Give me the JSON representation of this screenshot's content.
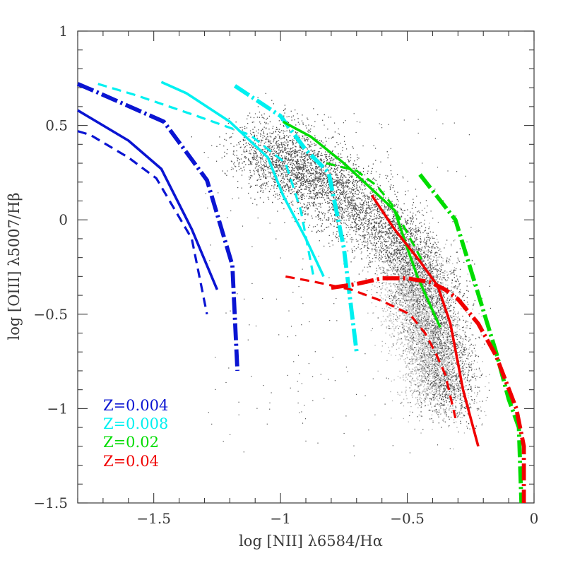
{
  "chart_data": {
    "type": "scatter",
    "title": "",
    "xlabel": "log [NII] λ6584/Hα",
    "ylabel": "log [OIII] λ5007/Hβ",
    "xlim": [
      -1.8,
      0
    ],
    "ylim": [
      -1.5,
      1
    ],
    "x_ticks": [
      -1.5,
      -1,
      -0.5,
      0
    ],
    "y_ticks": [
      -1.5,
      -1,
      -0.5,
      0,
      0.5,
      1
    ],
    "x_tick_labels": [
      "−1.5",
      "−1",
      "−0.5",
      "0"
    ],
    "y_tick_labels": [
      "−1.5",
      "−1",
      "−0.5",
      "0",
      "0.5",
      "1"
    ],
    "grid": false,
    "legend": {
      "placement": "bottom-left",
      "entries": [
        {
          "label": "Z=0.004",
          "color": "#0a14d2"
        },
        {
          "label": "Z=0.008",
          "color": "#00f0f0"
        },
        {
          "label": "Z=0.02",
          "color": "#00dc00"
        },
        {
          "label": "Z=0.04",
          "color": "#f00000"
        }
      ]
    },
    "background_points": {
      "colors": [
        "#4a4a4a",
        "#a9a9a9",
        "#c8c8c8"
      ]
    },
    "series": [
      {
        "metallicity": "Z=0.004",
        "style": "solid",
        "color": "#0a14d2",
        "x": [
          -1.8,
          -1.6,
          -1.47,
          -1.35,
          -1.25
        ],
        "y": [
          0.58,
          0.42,
          0.27,
          -0.05,
          -0.37
        ]
      },
      {
        "metallicity": "Z=0.004",
        "style": "dashed",
        "color": "#0a14d2",
        "x": [
          -1.8,
          -1.75,
          -1.6,
          -1.49,
          -1.35,
          -1.29
        ],
        "y": [
          0.47,
          0.45,
          0.33,
          0.22,
          -0.1,
          -0.5
        ]
      },
      {
        "metallicity": "Z=0.004",
        "style": "dash-dot",
        "color": "#0a14d2",
        "x": [
          -1.8,
          -1.73,
          -1.46,
          -1.29,
          -1.19,
          -1.17
        ],
        "y": [
          0.72,
          0.68,
          0.52,
          0.21,
          -0.24,
          -0.8
        ]
      },
      {
        "metallicity": "Z=0.008",
        "style": "solid",
        "color": "#00f0f0",
        "x": [
          -1.47,
          -1.37,
          -1.2,
          -1.05,
          -0.99,
          -0.9,
          -0.83
        ],
        "y": [
          0.73,
          0.67,
          0.52,
          0.33,
          0.13,
          -0.1,
          -0.3
        ]
      },
      {
        "metallicity": "Z=0.008",
        "style": "dashed",
        "color": "#00f0f0",
        "x": [
          -1.72,
          -1.57,
          -1.33,
          -1.12,
          -0.98,
          -0.92,
          -0.87
        ],
        "y": [
          0.72,
          0.66,
          0.55,
          0.45,
          0.3,
          0.05,
          -0.3
        ]
      },
      {
        "metallicity": "Z=0.008",
        "style": "dash-dot",
        "color": "#00f0f0",
        "x": [
          -1.18,
          -1.0,
          -0.9,
          -0.81,
          -0.75,
          -0.7
        ],
        "y": [
          0.71,
          0.55,
          0.37,
          0.25,
          -0.15,
          -0.7
        ]
      },
      {
        "metallicity": "Z=0.02",
        "style": "solid",
        "color": "#00dc00",
        "x": [
          -0.99,
          -0.88,
          -0.75,
          -0.63,
          -0.55,
          -0.5,
          -0.46,
          -0.37
        ],
        "y": [
          0.52,
          0.44,
          0.3,
          0.15,
          0.05,
          -0.15,
          -0.3,
          -0.57
        ]
      },
      {
        "metallicity": "Z=0.02",
        "style": "dashed",
        "color": "#00dc00",
        "x": [
          -0.82,
          -0.7,
          -0.62,
          -0.56,
          -0.52,
          -0.48,
          -0.44
        ],
        "y": [
          0.3,
          0.26,
          0.18,
          0.08,
          -0.02,
          -0.12,
          -0.22
        ]
      },
      {
        "metallicity": "Z=0.02",
        "style": "dash-dot",
        "color": "#00dc00",
        "x": [
          -0.45,
          -0.31,
          -0.23,
          -0.15,
          -0.1,
          -0.06,
          -0.05
        ],
        "y": [
          0.24,
          0.0,
          -0.35,
          -0.7,
          -0.95,
          -1.1,
          -1.5
        ]
      },
      {
        "metallicity": "Z=0.04",
        "style": "solid",
        "color": "#f00000",
        "x": [
          -0.64,
          -0.55,
          -0.45,
          -0.38,
          -0.33,
          -0.28,
          -0.22
        ],
        "y": [
          0.13,
          -0.05,
          -0.22,
          -0.35,
          -0.55,
          -0.9,
          -1.2
        ]
      },
      {
        "metallicity": "Z=0.04",
        "style": "dashed",
        "color": "#f00000",
        "x": [
          -0.98,
          -0.86,
          -0.72,
          -0.6,
          -0.49,
          -0.43,
          -0.39,
          -0.35,
          -0.31
        ],
        "y": [
          -0.3,
          -0.33,
          -0.37,
          -0.43,
          -0.5,
          -0.6,
          -0.7,
          -0.82,
          -1.05
        ]
      },
      {
        "metallicity": "Z=0.04",
        "style": "dash-dot",
        "color": "#f00000",
        "x": [
          -0.8,
          -0.7,
          -0.6,
          -0.5,
          -0.41,
          -0.35,
          -0.3,
          -0.22,
          -0.15,
          -0.07,
          -0.04,
          -0.04
        ],
        "y": [
          -0.36,
          -0.34,
          -0.31,
          -0.31,
          -0.33,
          -0.37,
          -0.42,
          -0.55,
          -0.72,
          -1.0,
          -1.2,
          -1.5
        ]
      }
    ]
  }
}
